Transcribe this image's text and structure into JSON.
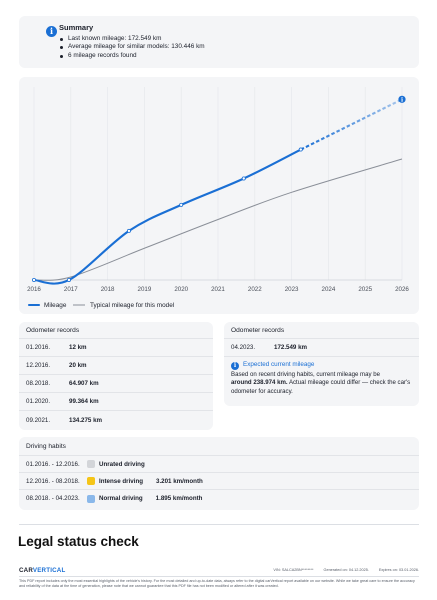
{
  "summary": {
    "title": "Summary",
    "items": [
      "Last known mileage: 172.549 km",
      "Average mileage for similar models: 130.446 km",
      "6 mileage records found"
    ]
  },
  "chart_data": {
    "type": "line",
    "x_ticks": [
      "2016",
      "2017",
      "2018",
      "2019",
      "2020",
      "2021",
      "2022",
      "2023",
      "2024",
      "2025",
      "2026"
    ],
    "series": [
      {
        "name": "Mileage",
        "color": "#1a6fd4",
        "points": [
          [
            2016.0,
            12
          ],
          [
            2016.95,
            20
          ],
          [
            2018.58,
            64907
          ],
          [
            2020.0,
            99364
          ],
          [
            2021.7,
            134275
          ],
          [
            2023.25,
            172549
          ]
        ],
        "projection": [
          [
            2023.25,
            172549
          ],
          [
            2026.0,
            238974
          ]
        ]
      },
      {
        "name": "Typical mileage for this model",
        "color": "#8a8f98",
        "points": [
          [
            2016.0,
            0
          ],
          [
            2017.0,
            4000
          ],
          [
            2019.0,
            42000
          ],
          [
            2021.0,
            80000
          ],
          [
            2023.0,
            116000
          ],
          [
            2026.0,
            160000
          ]
        ]
      }
    ],
    "xlim": [
      2016,
      2026
    ],
    "ylim": [
      0,
      250000
    ],
    "legend": "bottom-left",
    "grid": "vertical-only",
    "end_marker_icon": "info-icon"
  },
  "records_left": {
    "title": "Odometer records",
    "rows": [
      {
        "date": "01.2016.",
        "value": "12 km"
      },
      {
        "date": "12.2016.",
        "value": "20 km"
      },
      {
        "date": "08.2018.",
        "value": "64.907 km"
      },
      {
        "date": "01.2020.",
        "value": "99.364 km"
      },
      {
        "date": "09.2021.",
        "value": "134.275 km"
      }
    ]
  },
  "records_right": {
    "title": "Odometer records",
    "rows": [
      {
        "date": "04.2023.",
        "value": "172.549 km"
      }
    ],
    "expected_title": "Expected current mileage",
    "expected_before": "Based on recent driving habits, current mileage may be",
    "expected_bold": "around 238.974 km.",
    "expected_after": "Actual mileage could differ — check the car's odometer for accuracy."
  },
  "habits": {
    "title": "Driving habits",
    "rows": [
      {
        "range": "01.2016. - 12.2016.",
        "label": "Unrated driving",
        "value": "",
        "color": "#d3d5d9"
      },
      {
        "range": "12.2016. - 08.2018.",
        "label": "Intense driving",
        "value": "3.201 km/month",
        "color": "#f5c518"
      },
      {
        "range": "08.2018. - 04.2023.",
        "label": "Normal driving",
        "value": "1.895 km/month",
        "color": "#8ab8ea"
      }
    ]
  },
  "legal": {
    "title": "Legal status check"
  },
  "footer": {
    "brand_a": "CAR",
    "brand_b": "VERTICAL",
    "vin": "VIN: SALCA2BN********",
    "generated": "Generated on: 04.12.2025.",
    "expires": "Expires on: 03.01.2026.",
    "note": "This PDF report includes only the most essential highlights of the vehicle's history. For the most detailed and up-to-date data, always refer to the digital carVertical report available on our website. While we take great care to ensure the accuracy and reliability of the data at the time of generation, please note that we cannot guarantee that this PDF file has not been modified or altered after it was created."
  }
}
